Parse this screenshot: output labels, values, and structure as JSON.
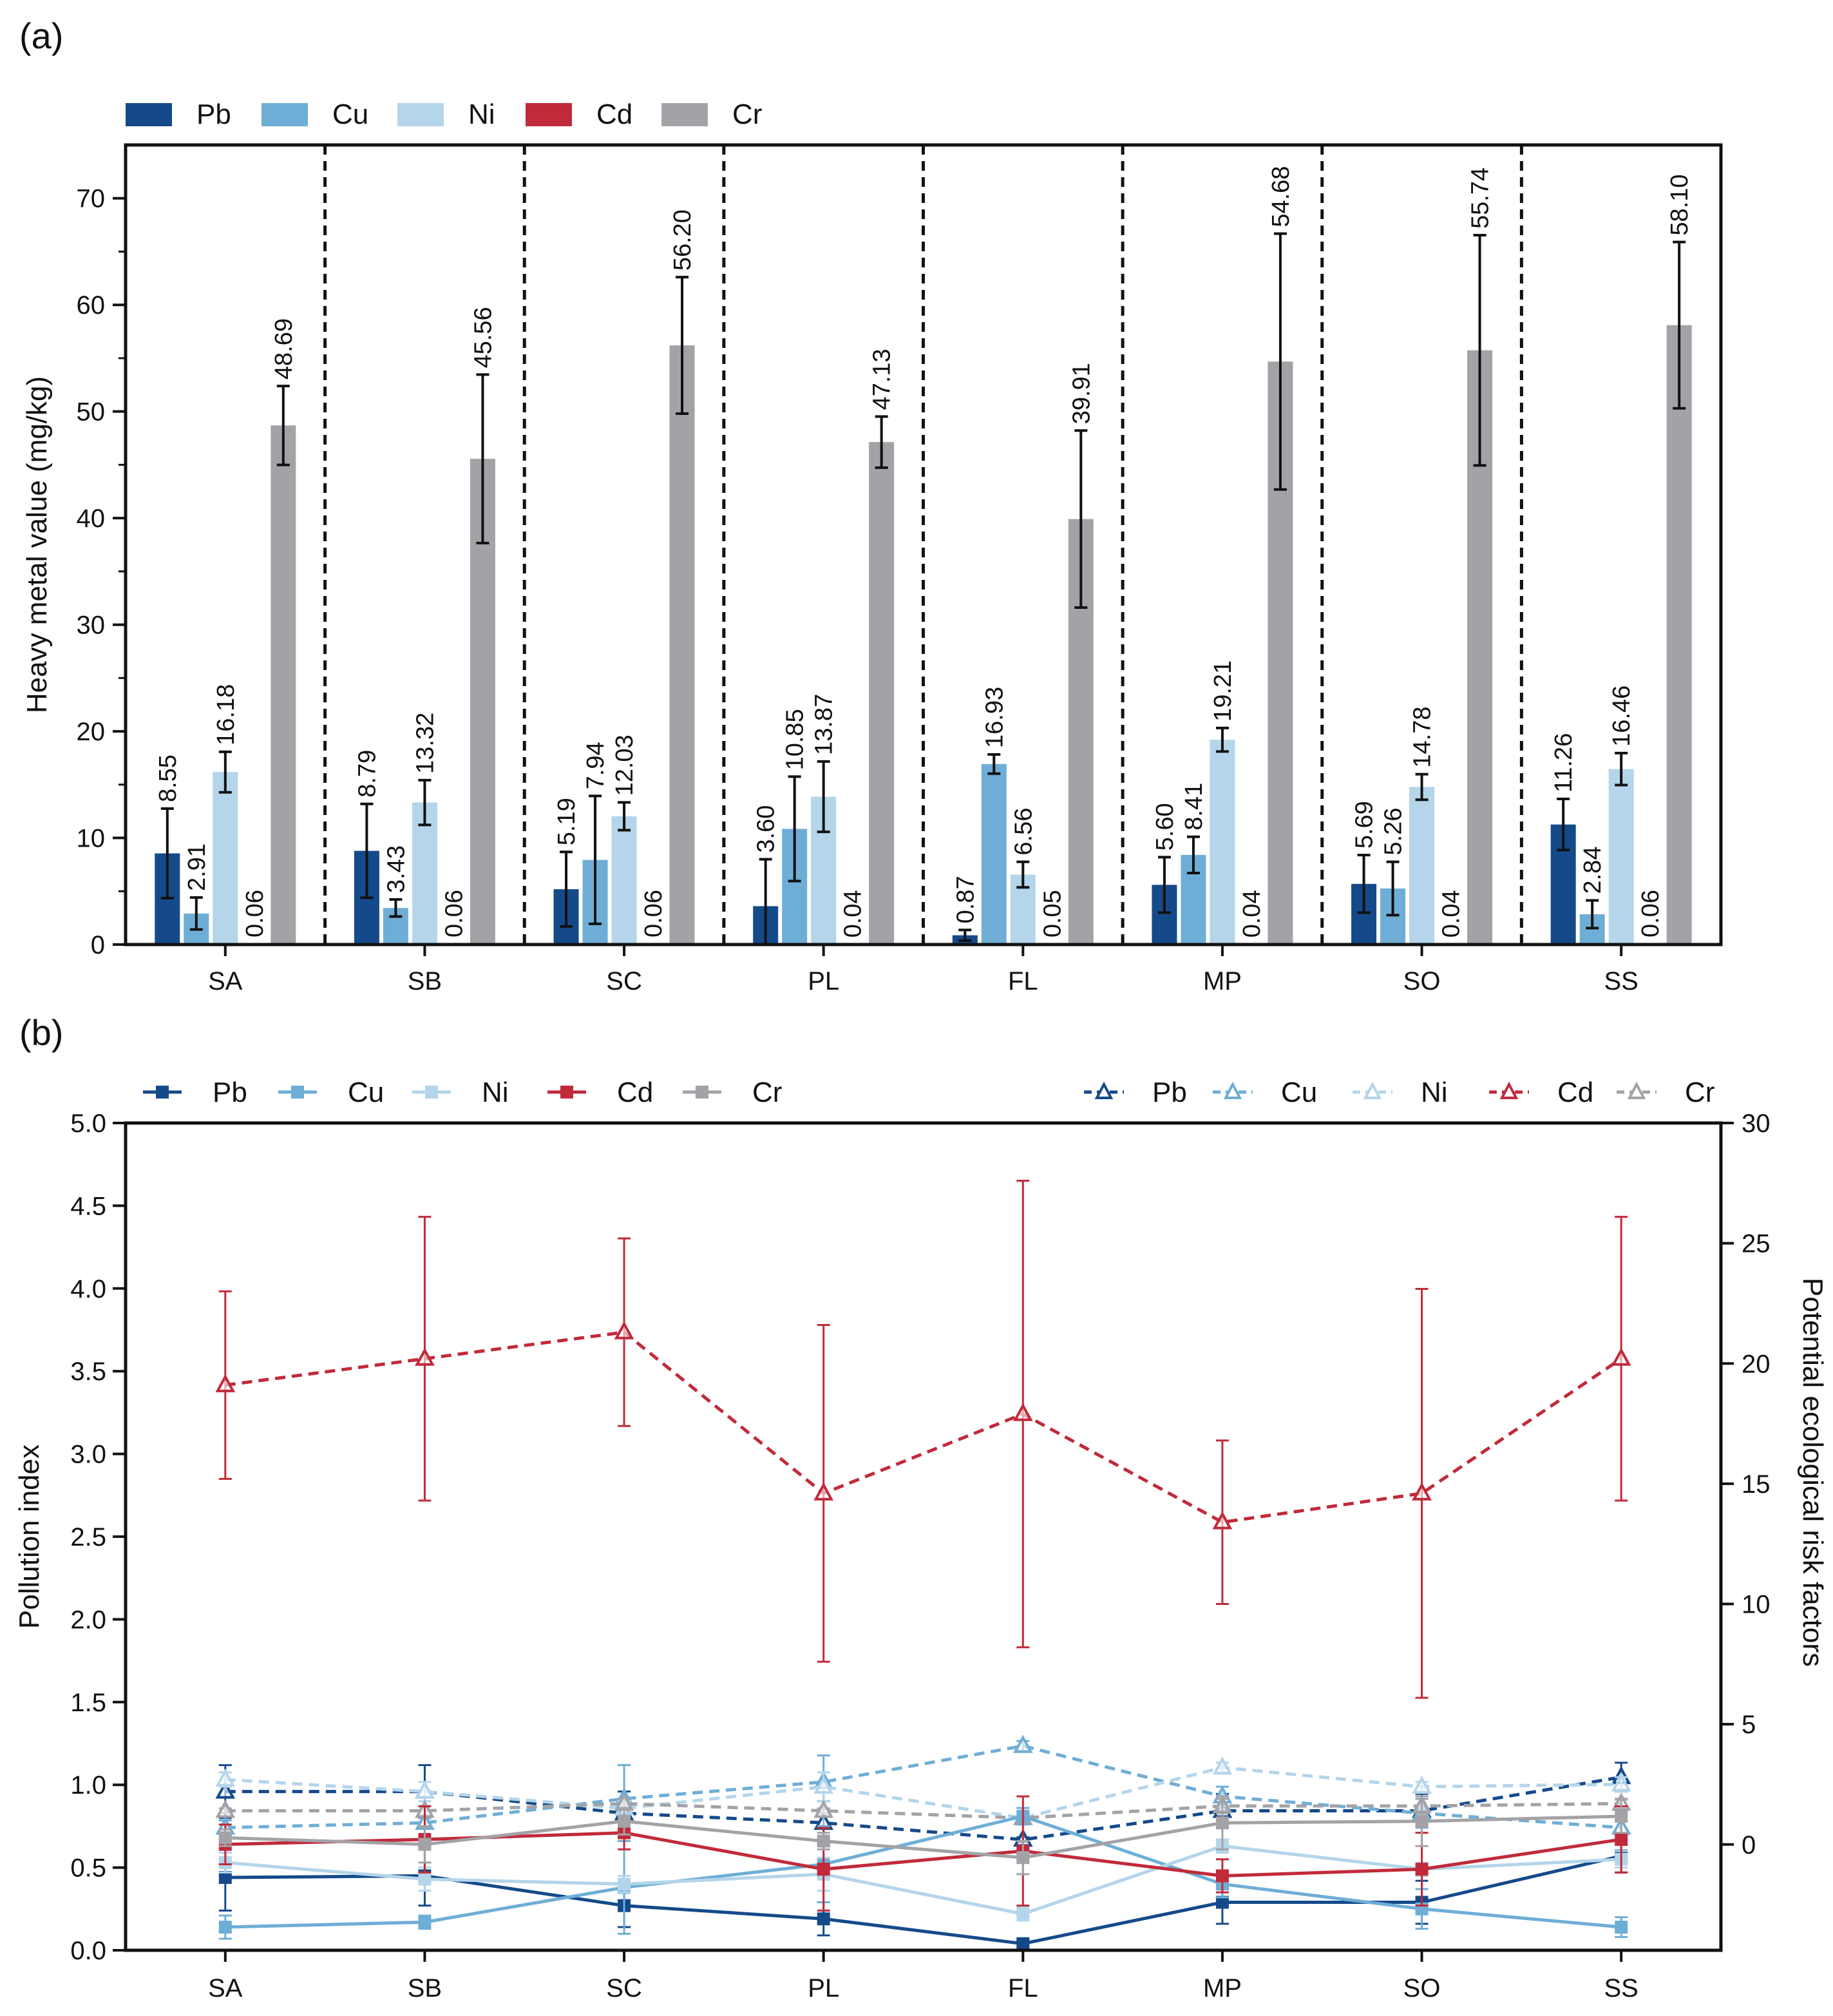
{
  "panels": {
    "a_label": "(a)",
    "b_label": "(b)"
  },
  "colors": {
    "Pb": "#154a8a",
    "Cu": "#6eaed6",
    "Ni": "#b4d5ea",
    "Cd": "#c12a3a",
    "Cr": "#a3a3a7"
  },
  "chart_data": [
    {
      "type": "bar",
      "title": "(a)",
      "categories": [
        "SA",
        "SB",
        "SC",
        "PL",
        "FL",
        "MP",
        "SO",
        "SS"
      ],
      "ylabel": "Heavy metal value (mg/kg)",
      "xlabel": "",
      "ylim": [
        0,
        75
      ],
      "yticks": [
        0,
        10,
        20,
        30,
        40,
        50,
        60,
        70
      ],
      "yticklabels": [
        "0",
        "10",
        "20",
        "30",
        "40",
        "50",
        "60",
        "70"
      ],
      "legend": [
        "Pb",
        "Cu",
        "Ni",
        "Cd",
        "Cr"
      ],
      "legend_position": "top-left",
      "series": [
        {
          "name": "Pb",
          "values": [
            8.55,
            8.79,
            5.19,
            3.6,
            0.87,
            5.6,
            5.69,
            11.26
          ],
          "labels": [
            "8.55",
            "8.79",
            "5.19",
            "3.60",
            "0.87",
            "5.60",
            "5.69",
            "11.26"
          ],
          "errors": [
            4.2,
            4.4,
            3.5,
            4.4,
            0.5,
            2.6,
            2.7,
            2.4
          ]
        },
        {
          "name": "Cu",
          "values": [
            2.91,
            3.43,
            7.94,
            10.85,
            16.93,
            8.41,
            5.26,
            2.84
          ],
          "labels": [
            "2.91",
            "3.43",
            "7.94",
            "10.85",
            "16.93",
            "8.41",
            "5.26",
            "2.84"
          ],
          "errors": [
            1.5,
            0.8,
            6.0,
            4.9,
            0.9,
            1.7,
            2.5,
            1.3
          ]
        },
        {
          "name": "Ni",
          "values": [
            16.18,
            13.32,
            12.03,
            13.87,
            6.56,
            19.21,
            14.78,
            16.46
          ],
          "labels": [
            "16.18",
            "13.32",
            "12.03",
            "13.87",
            "6.56",
            "19.21",
            "14.78",
            "16.46"
          ],
          "errors": [
            1.9,
            2.1,
            1.3,
            3.3,
            1.2,
            1.1,
            1.2,
            1.5
          ]
        },
        {
          "name": "Cd",
          "values": [
            0.06,
            0.06,
            0.06,
            0.04,
            0.05,
            0.04,
            0.04,
            0.06
          ],
          "labels": [
            "0.06",
            "0.06",
            "0.06",
            "0.04",
            "0.05",
            "0.04",
            "0.04",
            "0.06"
          ],
          "errors": [
            0,
            0,
            0,
            0,
            0,
            0,
            0,
            0
          ]
        },
        {
          "name": "Cr",
          "values": [
            48.69,
            45.56,
            56.2,
            47.13,
            39.91,
            54.68,
            55.74,
            58.1
          ],
          "labels": [
            "48.69",
            "45.56",
            "56.20",
            "47.13",
            "39.91",
            "54.68",
            "55.74",
            "58.10"
          ],
          "errors": [
            3.7,
            7.9,
            6.4,
            2.4,
            8.3,
            12.0,
            10.8,
            7.8
          ]
        }
      ]
    },
    {
      "type": "line",
      "title": "(b)",
      "categories": [
        "SA",
        "SB",
        "SC",
        "PL",
        "FL",
        "MP",
        "SO",
        "SS"
      ],
      "ylabel": "Pollution index",
      "ylabel_right": "Potential ecological risk factors",
      "ylim": [
        0,
        5
      ],
      "yticks": [
        0,
        0.5,
        1,
        1.5,
        2,
        2.5,
        3,
        3.5,
        4,
        4.5,
        5
      ],
      "yticklabels": [
        "0.0",
        "0.5",
        "1.0",
        "1.5",
        "2.0",
        "2.5",
        "3.0",
        "3.5",
        "4.0",
        "4.5",
        "5.0"
      ],
      "ylim_right": [
        -4.4,
        30
      ],
      "yticks_right": [
        0,
        5,
        10,
        15,
        20,
        25,
        30
      ],
      "yticklabels_right": [
        "0",
        "5",
        "10",
        "15",
        "20",
        "25",
        "30"
      ],
      "legend_left": [
        "Pb",
        "Cu",
        "Ni",
        "Cd",
        "Cr"
      ],
      "legend_right": [
        "Pb",
        "Cu",
        "Ni",
        "Cd",
        "Cr"
      ],
      "pollution_index_series": [
        {
          "name": "Pb",
          "values": [
            0.44,
            0.45,
            0.27,
            0.19,
            0.04,
            0.29,
            0.29,
            0.57
          ],
          "errors": [
            0.2,
            0.18,
            0.13,
            0.1,
            0.02,
            0.13,
            0.13,
            0.1
          ]
        },
        {
          "name": "Cu",
          "values": [
            0.14,
            0.17,
            0.38,
            0.52,
            0.81,
            0.4,
            0.25,
            0.14
          ],
          "errors": [
            0.07,
            0.04,
            0.28,
            0.23,
            0.05,
            0.08,
            0.12,
            0.06
          ]
        },
        {
          "name": "Ni",
          "values": [
            0.53,
            0.43,
            0.4,
            0.46,
            0.22,
            0.63,
            0.49,
            0.55
          ],
          "errors": [
            0.06,
            0.07,
            0.05,
            0.1,
            0.04,
            0.04,
            0.04,
            0.05
          ]
        },
        {
          "name": "Cd",
          "values": [
            0.64,
            0.67,
            0.71,
            0.49,
            0.6,
            0.45,
            0.49,
            0.67
          ],
          "errors": [
            0.12,
            0.2,
            0.1,
            0.25,
            0.33,
            0.1,
            0.22,
            0.2
          ]
        },
        {
          "name": "Cr",
          "values": [
            0.68,
            0.64,
            0.78,
            0.66,
            0.56,
            0.77,
            0.78,
            0.81
          ],
          "errors": [
            0.05,
            0.11,
            0.08,
            0.05,
            0.1,
            0.16,
            0.15,
            0.1
          ]
        }
      ],
      "ecological_risk_series": [
        {
          "name": "Pb",
          "values": [
            2.2,
            2.2,
            1.3,
            0.9,
            0.2,
            1.4,
            1.4,
            2.8
          ],
          "errors": [
            1.1,
            1.1,
            0.9,
            0.9,
            0.1,
            0.7,
            0.7,
            0.6
          ]
        },
        {
          "name": "Cu",
          "values": [
            0.7,
            0.9,
            1.9,
            2.6,
            4.1,
            2.0,
            1.3,
            0.7
          ],
          "errors": [
            0.3,
            0.2,
            1.4,
            1.1,
            0.2,
            0.4,
            0.6,
            0.3
          ]
        },
        {
          "name": "Ni",
          "values": [
            2.7,
            2.2,
            1.5,
            2.4,
            1.1,
            3.2,
            2.4,
            2.5
          ],
          "errors": [
            0.3,
            0.4,
            0.3,
            0.6,
            0.2,
            0.2,
            0.2,
            0.3
          ]
        },
        {
          "name": "Cd",
          "values": [
            19.1,
            20.2,
            21.3,
            14.6,
            17.9,
            13.4,
            14.6,
            20.2
          ],
          "errors": [
            3.9,
            5.9,
            3.9,
            7.0,
            9.7,
            3.4,
            8.5,
            5.9
          ]
        },
        {
          "name": "Cr",
          "values": [
            1.4,
            1.4,
            1.7,
            1.4,
            1.1,
            1.6,
            1.6,
            1.7
          ],
          "errors": [
            0.1,
            0.2,
            0.2,
            0.1,
            0.2,
            0.3,
            0.3,
            0.2
          ]
        }
      ]
    }
  ]
}
